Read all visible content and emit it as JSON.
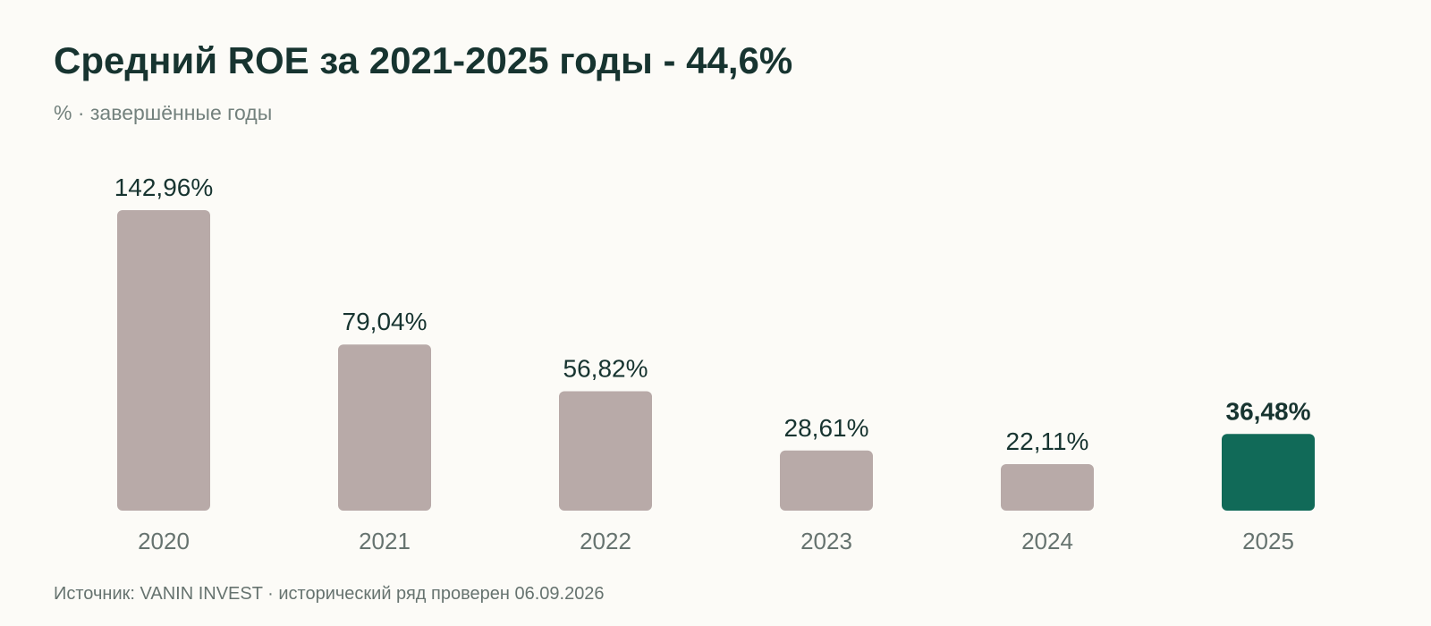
{
  "chart_data": {
    "type": "bar",
    "title": "Средний ROE за 2021-2025 годы - 44,6%",
    "subtitle": "% · завершённые годы",
    "categories": [
      "2020",
      "2021",
      "2022",
      "2023",
      "2024",
      "2025"
    ],
    "values": [
      142.96,
      79.04,
      56.82,
      28.61,
      22.11,
      36.48
    ],
    "value_labels": [
      "142,96%",
      "79,04%",
      "56,82%",
      "28,61%",
      "22,11%",
      "36,48%"
    ],
    "highlight_category": "2025",
    "xlabel": "",
    "ylabel": "",
    "grid": false,
    "legend": "none"
  },
  "colors": {
    "bar": "#b8aaa8",
    "highlight": "#116a58",
    "text": "#173430",
    "muted": "#66736f",
    "background": "#fcfbf7"
  },
  "footer": {
    "source": "Источник: VANIN INVEST · исторический ряд проверен 06.09.2026"
  }
}
